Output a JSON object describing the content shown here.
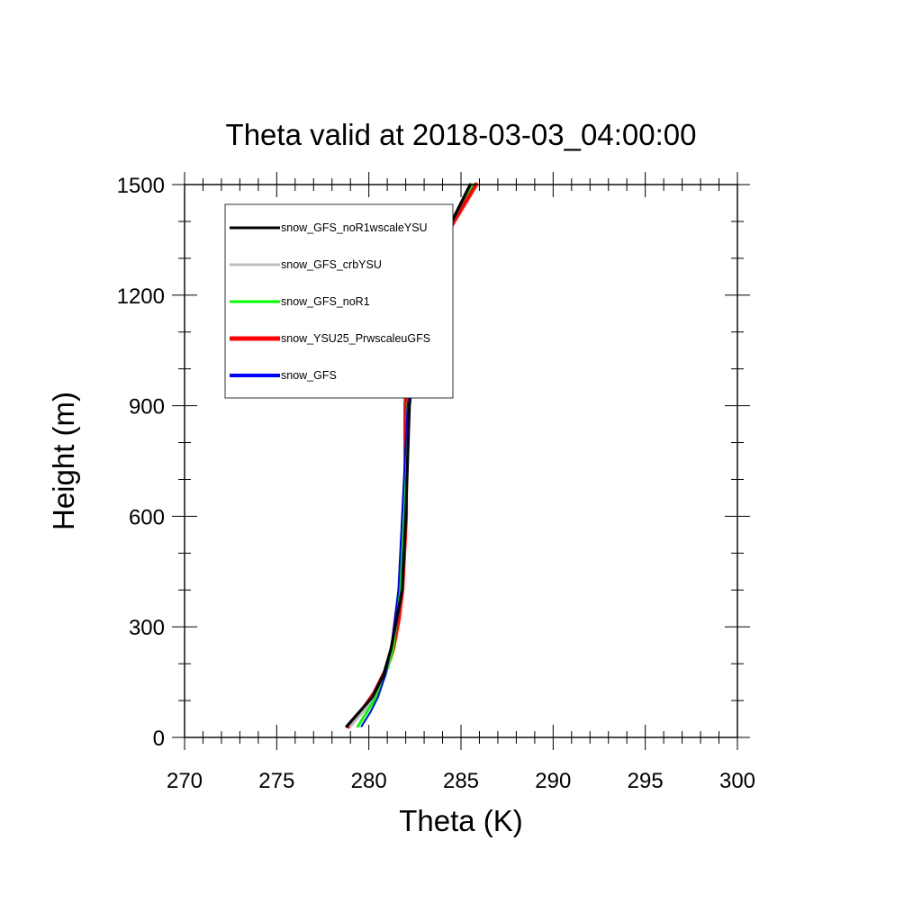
{
  "chart_data": {
    "type": "line",
    "title": "Theta valid at 2018-03-03_04:00:00",
    "xlabel": "Theta (K)",
    "ylabel": "Height (m)",
    "xlim": [
      270,
      300
    ],
    "ylim": [
      0,
      1500
    ],
    "xticks": [
      "270",
      "275",
      "280",
      "285",
      "290",
      "295",
      "300"
    ],
    "yticks": [
      "0",
      "300",
      "600",
      "900",
      "1200",
      "1500"
    ],
    "legend_position": "top-left",
    "series": [
      {
        "name": "snow_GFS_noR1wscaleYSU",
        "color": "#000000",
        "points": [
          [
            278.8,
            30
          ],
          [
            279.5,
            70
          ],
          [
            280.2,
            110
          ],
          [
            280.8,
            170
          ],
          [
            281.2,
            240
          ],
          [
            281.5,
            320
          ],
          [
            281.8,
            400
          ],
          [
            282.0,
            600
          ],
          [
            282.2,
            900
          ],
          [
            282.4,
            1000
          ],
          [
            282.7,
            1100
          ],
          [
            283.0,
            1200
          ],
          [
            283.4,
            1300
          ],
          [
            284.5,
            1400
          ],
          [
            285.0,
            1450
          ],
          [
            285.5,
            1500
          ]
        ]
      },
      {
        "name": "snow_GFS_crbYSU",
        "color": "#bdbdbd",
        "points": [
          [
            279.0,
            30
          ],
          [
            279.7,
            70
          ],
          [
            280.3,
            110
          ],
          [
            280.8,
            170
          ],
          [
            281.2,
            240
          ],
          [
            281.5,
            320
          ],
          [
            281.7,
            400
          ],
          [
            281.9,
            600
          ],
          [
            282.2,
            900
          ],
          [
            282.4,
            1000
          ],
          [
            282.7,
            1100
          ],
          [
            283.0,
            1200
          ],
          [
            283.4,
            1300
          ],
          [
            284.5,
            1400
          ],
          [
            285.0,
            1450
          ],
          [
            285.6,
            1500
          ]
        ]
      },
      {
        "name": "snow_GFS_noR1",
        "color": "#00ff00",
        "points": [
          [
            279.4,
            30
          ],
          [
            279.9,
            70
          ],
          [
            280.4,
            110
          ],
          [
            280.9,
            170
          ],
          [
            281.3,
            240
          ],
          [
            281.5,
            320
          ],
          [
            281.7,
            400
          ],
          [
            281.9,
            600
          ],
          [
            282.1,
            900
          ],
          [
            282.4,
            1000
          ],
          [
            282.7,
            1100
          ],
          [
            283.0,
            1200
          ],
          [
            283.4,
            1300
          ],
          [
            284.5,
            1400
          ],
          [
            285.0,
            1450
          ],
          [
            285.6,
            1500
          ]
        ]
      },
      {
        "name": "snow_YSU25_PrwscaleuGFS",
        "color": "#ff0000",
        "points": [
          [
            278.9,
            30
          ],
          [
            279.6,
            70
          ],
          [
            280.3,
            120
          ],
          [
            280.9,
            180
          ],
          [
            281.3,
            240
          ],
          [
            281.6,
            320
          ],
          [
            281.8,
            400
          ],
          [
            281.9,
            500
          ],
          [
            282.0,
            600
          ],
          [
            282.0,
            900
          ],
          [
            282.1,
            1000
          ],
          [
            282.3,
            1100
          ],
          [
            282.6,
            1200
          ],
          [
            283.5,
            1300
          ],
          [
            284.6,
            1400
          ],
          [
            285.2,
            1450
          ],
          [
            285.8,
            1500
          ]
        ]
      },
      {
        "name": "snow_GFS",
        "color": "#0000ff",
        "points": [
          [
            279.6,
            30
          ],
          [
            280.1,
            70
          ],
          [
            280.5,
            110
          ],
          [
            280.9,
            170
          ],
          [
            281.2,
            240
          ],
          [
            281.4,
            320
          ],
          [
            281.6,
            400
          ],
          [
            281.8,
            600
          ],
          [
            282.1,
            900
          ],
          [
            282.4,
            1000
          ],
          [
            282.7,
            1100
          ],
          [
            283.0,
            1200
          ],
          [
            283.3,
            1300
          ],
          [
            284.5,
            1400
          ],
          [
            285.0,
            1450
          ],
          [
            285.5,
            1500
          ]
        ]
      }
    ]
  }
}
